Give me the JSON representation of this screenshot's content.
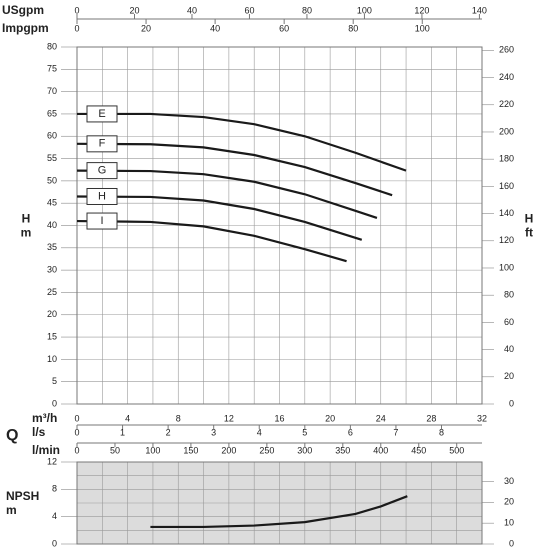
{
  "chart_data": [
    {
      "type": "line",
      "x_label": "m³/h",
      "quantity_label": "Q",
      "y_label_lines": [
        "H",
        "m"
      ],
      "y2_label_lines": [
        "H",
        "ft"
      ],
      "xlim": [
        0,
        32
      ],
      "xticks": [
        0,
        4,
        8,
        12,
        16,
        20,
        24,
        28,
        32
      ],
      "xminorticks": [
        2,
        6,
        10,
        14,
        18,
        22,
        26,
        30
      ],
      "ylim": [
        0,
        80
      ],
      "yticks": [
        0,
        5,
        10,
        15,
        20,
        25,
        30,
        35,
        40,
        45,
        50,
        55,
        60,
        65,
        70,
        75,
        80
      ],
      "y2lim": [
        0,
        262.47
      ],
      "y2ticks": [
        0,
        20,
        40,
        60,
        80,
        100,
        120,
        140,
        160,
        180,
        200,
        220,
        240,
        260
      ],
      "grid": true,
      "secondary_x_axes": [
        {
          "label": "USgpm",
          "xlim": [
            0,
            140.9
          ],
          "xticks": [
            0,
            20,
            40,
            60,
            80,
            100,
            120,
            140
          ]
        },
        {
          "label": "Impgpm",
          "xlim": [
            0,
            117.3
          ],
          "xticks": [
            0,
            20,
            40,
            60,
            80,
            100
          ]
        },
        {
          "label": "l/s",
          "xlim": [
            0,
            8.889
          ],
          "xticks": [
            0,
            1,
            2,
            3,
            4,
            5,
            6,
            7,
            8
          ]
        },
        {
          "label": "l/min",
          "xlim": [
            0,
            533.3
          ],
          "xticks": [
            0,
            50,
            100,
            150,
            200,
            250,
            300,
            350,
            400,
            450,
            500
          ]
        }
      ],
      "series": [
        {
          "name": "E",
          "color": "#1a1a1a",
          "x": [
            0,
            5.8,
            10,
            14,
            18,
            22,
            26
          ],
          "values": [
            65,
            65,
            64.3,
            62.7,
            60,
            56.3,
            52.3
          ]
        },
        {
          "name": "F",
          "color": "#1a1a1a",
          "x": [
            0,
            5.8,
            10,
            14,
            18,
            22,
            24.9
          ],
          "values": [
            58.3,
            58.2,
            57.5,
            55.8,
            53.1,
            49.5,
            46.8
          ]
        },
        {
          "name": "G",
          "color": "#1a1a1a",
          "x": [
            0,
            5.8,
            10,
            14,
            18,
            22,
            23.7
          ],
          "values": [
            52.3,
            52.2,
            51.5,
            49.8,
            47,
            43.3,
            41.7
          ]
        },
        {
          "name": "H",
          "color": "#1a1a1a",
          "x": [
            0,
            5.8,
            10,
            14,
            18,
            22.5
          ],
          "values": [
            46.5,
            46.4,
            45.6,
            43.7,
            40.8,
            36.8
          ]
        },
        {
          "name": "I",
          "color": "#1a1a1a",
          "x": [
            0,
            5.8,
            10,
            14,
            18,
            21.3
          ],
          "values": [
            41,
            40.8,
            39.8,
            37.7,
            34.7,
            32
          ]
        }
      ]
    },
    {
      "type": "line",
      "y_label_lines": [
        "NPSH",
        "m"
      ],
      "ylim": [
        0,
        12
      ],
      "yticks": [
        0,
        4,
        8,
        12
      ],
      "yminorticks": [
        2,
        6,
        10
      ],
      "y2lim": [
        0,
        39.37
      ],
      "y2ticks": [
        0,
        10,
        20,
        30
      ],
      "background": "#dcdcdc",
      "grid": true,
      "series": [
        {
          "color": "#1a1a1a",
          "x": [
            5.8,
            10,
            14,
            18,
            22,
            24,
            26.1
          ],
          "values": [
            2.5,
            2.5,
            2.7,
            3.2,
            4.4,
            5.5,
            7.0
          ]
        }
      ]
    }
  ]
}
